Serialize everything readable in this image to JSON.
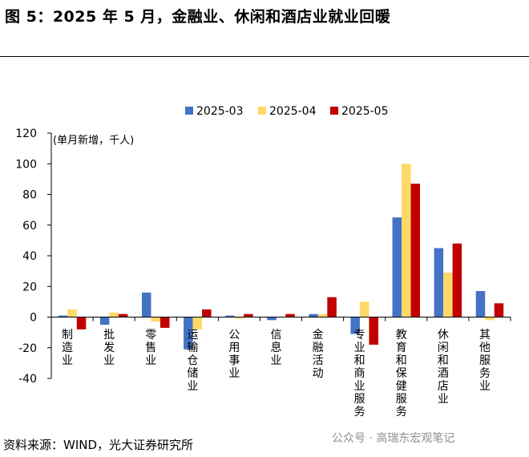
{
  "title": "图 5：2025 年 5 月，金融业、休闲和酒店业就业回暖",
  "source": "资料来源：WIND，光大证券研究所",
  "watermark": "公众号 · 高瑞东宏观笔记",
  "chart_data": {
    "type": "bar",
    "unit_label": "(单月新增，千人)",
    "categories": [
      "制造业",
      "批发业",
      "零售业",
      "运输仓储业",
      "公用事业",
      "信息业",
      "金融活动",
      "专业和商业服务",
      "教育和保健服务",
      "休闲和酒店业",
      "其他服务业"
    ],
    "series": [
      {
        "name": "2025-03",
        "color": "#4472C4",
        "values": [
          1,
          -5,
          16,
          -21,
          1,
          -2,
          2,
          -11,
          65,
          45,
          17
        ]
      },
      {
        "name": "2025-04",
        "color": "#FFD966",
        "values": [
          5,
          3,
          -3,
          -8,
          -1,
          0,
          2,
          10,
          100,
          29,
          -2
        ]
      },
      {
        "name": "2025-05",
        "color": "#C00000",
        "values": [
          -8,
          2,
          -7,
          5,
          2,
          2,
          13,
          -18,
          87,
          48,
          9
        ]
      }
    ],
    "ylim": [
      -40,
      120
    ],
    "yticks": [
      -40,
      -20,
      0,
      20,
      40,
      60,
      80,
      100,
      120
    ],
    "legend_position": "top-center",
    "grid": false
  }
}
